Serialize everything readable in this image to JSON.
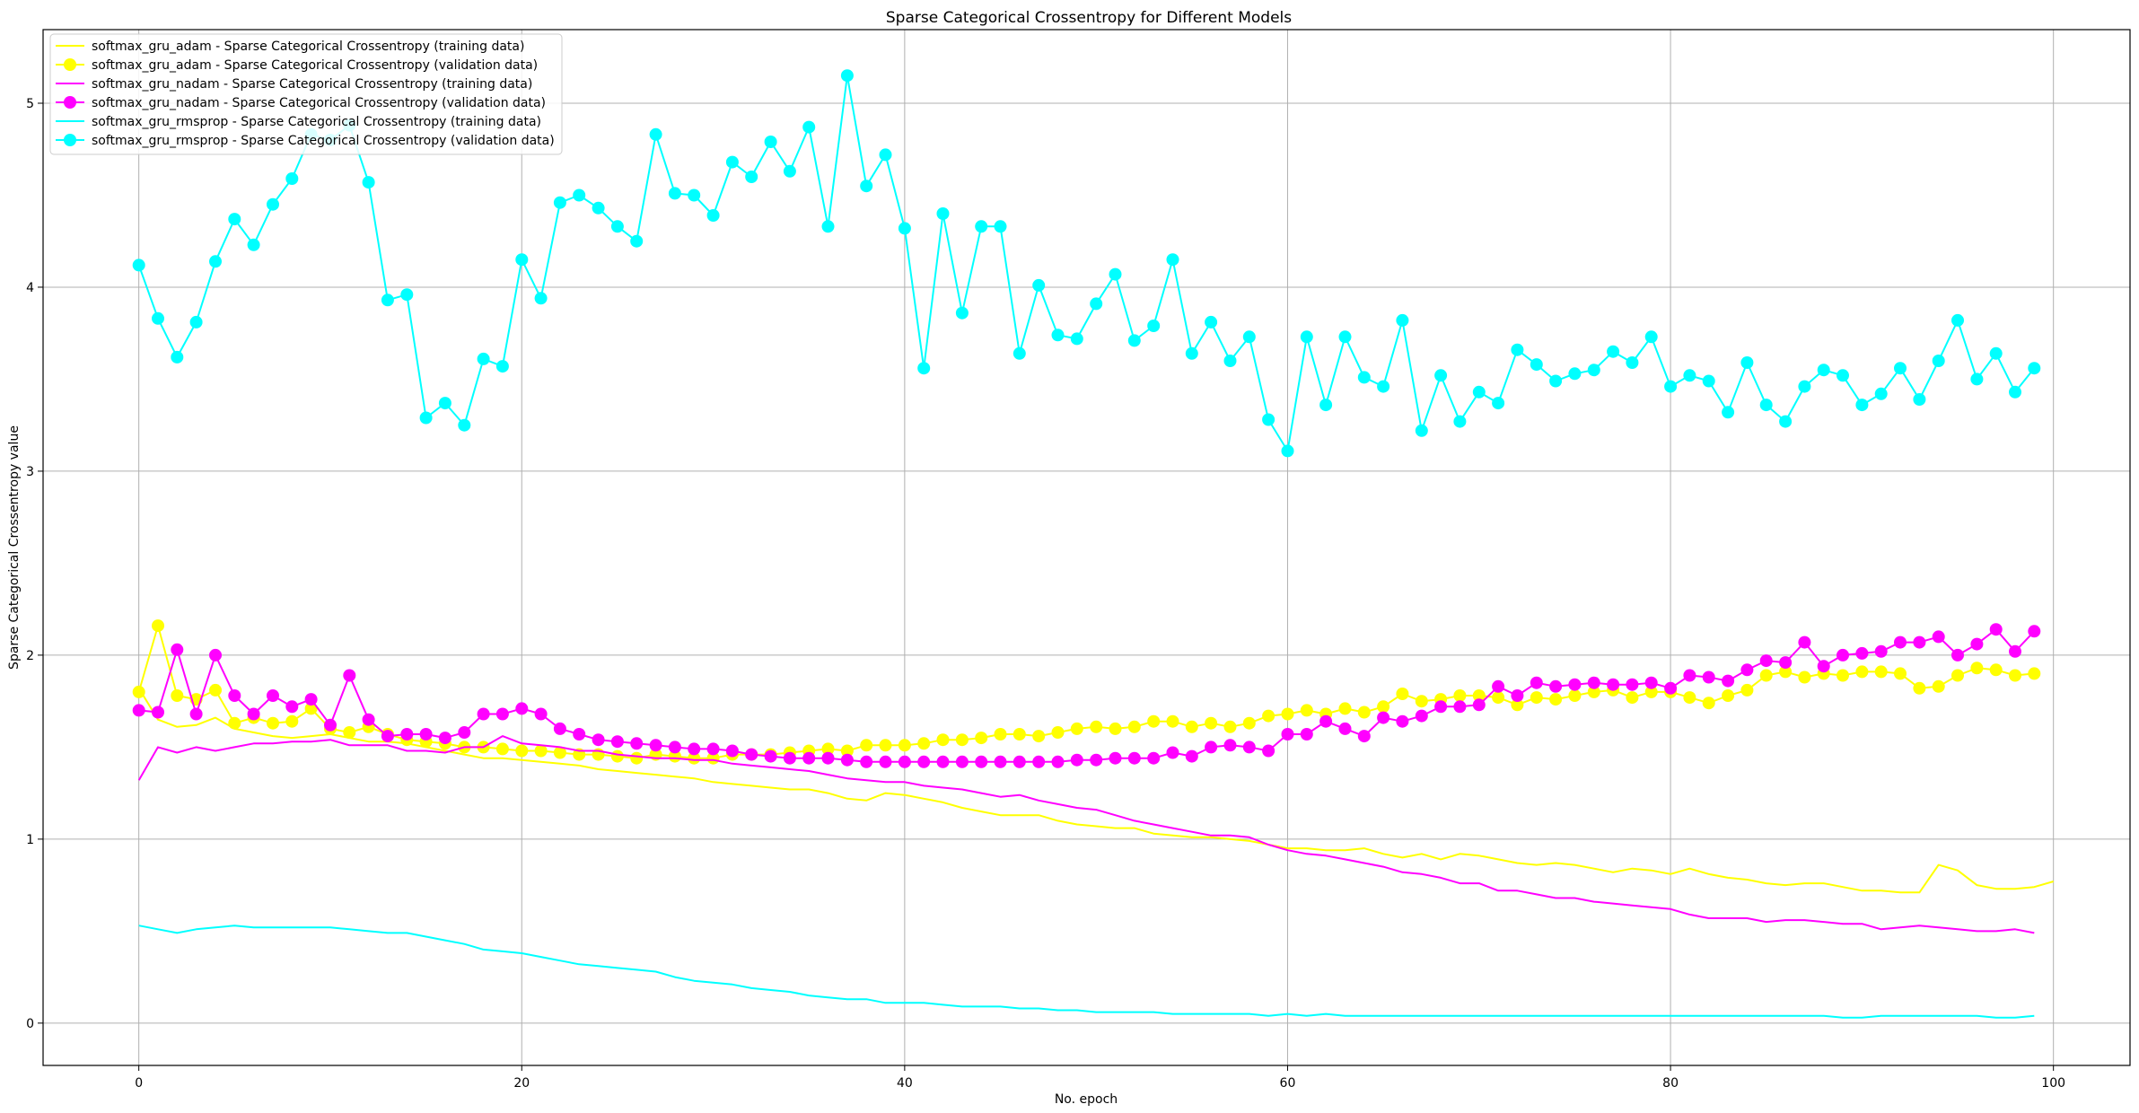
{
  "chart_data": {
    "type": "line",
    "title": "Sparse Categorical Crossentropy for Different Models",
    "xlabel": "No. epoch",
    "ylabel": "Sparse Categorical Crossentropy value",
    "xlim": [
      -5,
      104
    ],
    "ylim": [
      -0.23,
      5.4
    ],
    "x_ticks": [
      0,
      20,
      40,
      60,
      80,
      100
    ],
    "y_ticks": [
      0,
      1,
      2,
      3,
      4,
      5
    ],
    "grid": true,
    "legend_position": "top-left",
    "series": [
      {
        "name": "softmax_gru_adam - Sparse Categorical Crossentropy (training data)",
        "color": "#ffff00",
        "marker": false,
        "values": [
          1.82,
          1.65,
          1.61,
          1.62,
          1.66,
          1.6,
          1.58,
          1.56,
          1.55,
          1.56,
          1.57,
          1.55,
          1.53,
          1.53,
          1.52,
          1.5,
          1.48,
          1.46,
          1.44,
          1.44,
          1.43,
          1.42,
          1.41,
          1.4,
          1.38,
          1.37,
          1.36,
          1.35,
          1.34,
          1.33,
          1.31,
          1.3,
          1.29,
          1.28,
          1.27,
          1.27,
          1.25,
          1.22,
          1.21,
          1.25,
          1.24,
          1.22,
          1.2,
          1.17,
          1.15,
          1.13,
          1.13,
          1.13,
          1.1,
          1.08,
          1.07,
          1.06,
          1.06,
          1.03,
          1.02,
          1.01,
          1.01,
          1.0,
          0.99,
          0.97,
          0.95,
          0.95,
          0.94,
          0.94,
          0.95,
          0.92,
          0.9,
          0.92,
          0.89,
          0.92,
          0.91,
          0.89,
          0.87,
          0.86,
          0.87,
          0.86,
          0.84,
          0.82,
          0.84,
          0.83,
          0.81,
          0.84,
          0.81,
          0.79,
          0.78,
          0.76,
          0.75,
          0.76,
          0.76,
          0.74,
          0.72,
          0.72,
          0.71,
          0.71,
          0.86,
          0.83,
          0.75,
          0.73,
          0.73,
          0.74,
          0.77
        ]
      },
      {
        "name": "softmax_gru_adam - Sparse Categorical Crossentropy (validation data)",
        "color": "#ffff00",
        "marker": true,
        "values": [
          1.8,
          2.16,
          1.78,
          1.76,
          1.81,
          1.63,
          1.66,
          1.63,
          1.64,
          1.71,
          1.6,
          1.58,
          1.61,
          1.57,
          1.54,
          1.53,
          1.52,
          1.5,
          1.5,
          1.49,
          1.48,
          1.48,
          1.47,
          1.46,
          1.46,
          1.45,
          1.44,
          1.46,
          1.45,
          1.44,
          1.44,
          1.46,
          1.46,
          1.46,
          1.47,
          1.48,
          1.49,
          1.48,
          1.51,
          1.51,
          1.51,
          1.52,
          1.54,
          1.54,
          1.55,
          1.57,
          1.57,
          1.56,
          1.58,
          1.6,
          1.61,
          1.6,
          1.61,
          1.64,
          1.64,
          1.61,
          1.63,
          1.61,
          1.63,
          1.67,
          1.68,
          1.7,
          1.68,
          1.71,
          1.69,
          1.72,
          1.79,
          1.75,
          1.76,
          1.78,
          1.78,
          1.77,
          1.73,
          1.77,
          1.76,
          1.78,
          1.8,
          1.81,
          1.77,
          1.8,
          1.8,
          1.77,
          1.74,
          1.78,
          1.81,
          1.89,
          1.91,
          1.88,
          1.9,
          1.89,
          1.91,
          1.91,
          1.9,
          1.82,
          1.83,
          1.89,
          1.93,
          1.92,
          1.89,
          1.9
        ]
      },
      {
        "name": "softmax_gru_nadam - Sparse Categorical Crossentropy (training data)",
        "color": "#ff00ff",
        "marker": false,
        "values": [
          1.32,
          1.5,
          1.47,
          1.5,
          1.48,
          1.5,
          1.52,
          1.52,
          1.53,
          1.53,
          1.54,
          1.51,
          1.51,
          1.51,
          1.48,
          1.48,
          1.47,
          1.5,
          1.5,
          1.56,
          1.52,
          1.51,
          1.5,
          1.48,
          1.48,
          1.46,
          1.45,
          1.44,
          1.44,
          1.43,
          1.43,
          1.41,
          1.4,
          1.39,
          1.38,
          1.37,
          1.35,
          1.33,
          1.32,
          1.31,
          1.31,
          1.29,
          1.28,
          1.27,
          1.25,
          1.23,
          1.24,
          1.21,
          1.19,
          1.17,
          1.16,
          1.13,
          1.1,
          1.08,
          1.06,
          1.04,
          1.02,
          1.02,
          1.01,
          0.97,
          0.94,
          0.92,
          0.91,
          0.89,
          0.87,
          0.85,
          0.82,
          0.81,
          0.79,
          0.76,
          0.76,
          0.72,
          0.72,
          0.7,
          0.68,
          0.68,
          0.66,
          0.65,
          0.64,
          0.63,
          0.62,
          0.59,
          0.57,
          0.57,
          0.57,
          0.55,
          0.56,
          0.56,
          0.55,
          0.54,
          0.54,
          0.51,
          0.52,
          0.53,
          0.52,
          0.51,
          0.5,
          0.5,
          0.51,
          0.49
        ]
      },
      {
        "name": "softmax_gru_nadam - Sparse Categorical Crossentropy (validation data)",
        "color": "#ff00ff",
        "marker": true,
        "values": [
          1.7,
          1.69,
          2.03,
          1.68,
          2.0,
          1.78,
          1.68,
          1.78,
          1.72,
          1.76,
          1.62,
          1.89,
          1.65,
          1.56,
          1.57,
          1.57,
          1.55,
          1.58,
          1.68,
          1.68,
          1.71,
          1.68,
          1.6,
          1.57,
          1.54,
          1.53,
          1.52,
          1.51,
          1.5,
          1.49,
          1.49,
          1.48,
          1.46,
          1.45,
          1.44,
          1.44,
          1.44,
          1.43,
          1.42,
          1.42,
          1.42,
          1.42,
          1.42,
          1.42,
          1.42,
          1.42,
          1.42,
          1.42,
          1.42,
          1.43,
          1.43,
          1.44,
          1.44,
          1.44,
          1.47,
          1.45,
          1.5,
          1.51,
          1.5,
          1.48,
          1.57,
          1.57,
          1.64,
          1.6,
          1.56,
          1.66,
          1.64,
          1.67,
          1.72,
          1.72,
          1.73,
          1.83,
          1.78,
          1.85,
          1.83,
          1.84,
          1.85,
          1.84,
          1.84,
          1.85,
          1.82,
          1.89,
          1.88,
          1.86,
          1.92,
          1.97,
          1.96,
          2.07,
          1.94,
          2.0,
          2.01,
          2.02,
          2.07,
          2.07,
          2.1,
          2.0,
          2.06,
          2.14,
          2.02,
          2.13
        ]
      },
      {
        "name": "softmax_gru_rmsprop - Sparse Categorical Crossentropy (training data)",
        "color": "#00ffff",
        "marker": false,
        "values": [
          0.53,
          0.51,
          0.49,
          0.51,
          0.52,
          0.53,
          0.52,
          0.52,
          0.52,
          0.52,
          0.52,
          0.51,
          0.5,
          0.49,
          0.49,
          0.47,
          0.45,
          0.43,
          0.4,
          0.39,
          0.38,
          0.36,
          0.34,
          0.32,
          0.31,
          0.3,
          0.29,
          0.28,
          0.25,
          0.23,
          0.22,
          0.21,
          0.19,
          0.18,
          0.17,
          0.15,
          0.14,
          0.13,
          0.13,
          0.11,
          0.11,
          0.11,
          0.1,
          0.09,
          0.09,
          0.09,
          0.08,
          0.08,
          0.07,
          0.07,
          0.06,
          0.06,
          0.06,
          0.06,
          0.05,
          0.05,
          0.05,
          0.05,
          0.05,
          0.04,
          0.05,
          0.04,
          0.05,
          0.04,
          0.04,
          0.04,
          0.04,
          0.04,
          0.04,
          0.04,
          0.04,
          0.04,
          0.04,
          0.04,
          0.04,
          0.04,
          0.04,
          0.04,
          0.04,
          0.04,
          0.04,
          0.04,
          0.04,
          0.04,
          0.04,
          0.04,
          0.04,
          0.04,
          0.04,
          0.03,
          0.03,
          0.04,
          0.04,
          0.04,
          0.04,
          0.04,
          0.04,
          0.03,
          0.03,
          0.04
        ]
      },
      {
        "name": "softmax_gru_rmsprop - Sparse Categorical Crossentropy (validation data)",
        "color": "#00ffff",
        "marker": true,
        "values": [
          4.12,
          3.83,
          3.62,
          3.81,
          4.14,
          4.37,
          4.23,
          4.45,
          4.59,
          4.83,
          4.8,
          4.88,
          4.57,
          3.93,
          3.96,
          3.29,
          3.37,
          3.25,
          3.61,
          3.57,
          4.15,
          3.94,
          4.46,
          4.5,
          4.43,
          4.33,
          4.25,
          4.83,
          4.51,
          4.5,
          4.39,
          4.68,
          4.6,
          4.79,
          4.63,
          4.87,
          4.33,
          5.15,
          4.55,
          4.72,
          4.32,
          3.56,
          4.4,
          3.86,
          4.33,
          4.33,
          3.64,
          4.01,
          3.74,
          3.72,
          3.91,
          4.07,
          3.71,
          3.79,
          4.15,
          3.64,
          3.81,
          3.6,
          3.73,
          3.28,
          3.11,
          3.73,
          3.36,
          3.73,
          3.51,
          3.46,
          3.82,
          3.22,
          3.52,
          3.27,
          3.43,
          3.37,
          3.66,
          3.58,
          3.49,
          3.53,
          3.55,
          3.65,
          3.59,
          3.73,
          3.46,
          3.52,
          3.49,
          3.32,
          3.59,
          3.36,
          3.27,
          3.46,
          3.55,
          3.52,
          3.36,
          3.42,
          3.56,
          3.39,
          3.6,
          3.82,
          3.5,
          3.64,
          3.43,
          3.56
        ]
      }
    ]
  }
}
